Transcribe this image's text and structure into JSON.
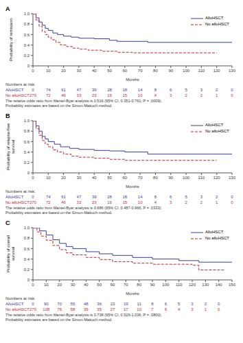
{
  "chart_data": [
    {
      "type": "line",
      "title": "A",
      "y_label": "Probability of remission",
      "x_label": "Months",
      "xlim": [
        0,
        130
      ],
      "xticks": [
        0,
        10,
        20,
        30,
        40,
        50,
        60,
        70,
        80,
        90,
        100,
        110,
        120,
        130
      ],
      "ylim": [
        0,
        1
      ],
      "yticks": [
        0,
        0.2,
        0.4,
        0.6,
        0.8,
        {
          "value": 1,
          "label": "1.0"
        }
      ],
      "legend": "upper right",
      "series": [
        {
          "name": "AlloHSCT",
          "color": "#3a3aa8",
          "line_style": "solid",
          "x": [
            0,
            2,
            4,
            6,
            8,
            10,
            13,
            16,
            20,
            25,
            30,
            40,
            50,
            55,
            75,
            130
          ],
          "values": [
            1,
            0.92,
            0.84,
            0.78,
            0.72,
            0.68,
            0.63,
            0.6,
            0.57,
            0.55,
            0.53,
            0.52,
            0.49,
            0.47,
            0.45,
            0.45
          ]
        },
        {
          "name": "No alloHSCT",
          "color": "#c0282d",
          "line_style": "dashed",
          "x": [
            0,
            2,
            4,
            6,
            8,
            10,
            12,
            15,
            18,
            22,
            26,
            30,
            36,
            45,
            55,
            65,
            120
          ],
          "values": [
            1,
            0.88,
            0.76,
            0.66,
            0.6,
            0.55,
            0.5,
            0.45,
            0.4,
            0.37,
            0.34,
            0.32,
            0.3,
            0.28,
            0.26,
            0.25,
            0.25
          ]
        }
      ],
      "at_risk": {
        "label": "Numbers at risk:",
        "times": [
          0,
          10,
          20,
          30,
          40,
          50,
          60,
          70,
          80,
          90,
          100,
          110,
          120,
          130
        ],
        "rows": [
          [
            0,
            74,
            61,
            47,
            39,
            28,
            18,
            14,
            8,
            6,
            5,
            3,
            2,
            0
          ],
          [
            270,
            72,
            46,
            33,
            23,
            19,
            15,
            10,
            4,
            3,
            2,
            2,
            1,
            0
          ]
        ]
      },
      "caption": [
        "The relative odds ratio from Mantel-Byar analysis is 0.516 (95% CI, 0.351-0.761; P = .0009).",
        "Probability estimates are based on the Simon-Makuch method."
      ]
    },
    {
      "type": "line",
      "title": "B",
      "y_label": "Probability of relapse-free survival",
      "x_label": "Months",
      "xlim": [
        0,
        130
      ],
      "xticks": [
        0,
        10,
        20,
        30,
        40,
        50,
        60,
        70,
        80,
        90,
        100,
        110,
        120,
        130
      ],
      "ylim": [
        0,
        1
      ],
      "yticks": [
        0,
        0.2,
        0.4,
        0.6,
        0.8,
        {
          "value": 1,
          "label": "1.0"
        }
      ],
      "legend": "upper right",
      "series": [
        {
          "name": "AlloHSCT",
          "color": "#3a3aa8",
          "line_style": "solid",
          "x": [
            0,
            2,
            4,
            6,
            8,
            10,
            14,
            18,
            24,
            30,
            40,
            50,
            60,
            75,
            130
          ],
          "values": [
            1,
            0.9,
            0.8,
            0.7,
            0.65,
            0.6,
            0.55,
            0.5,
            0.47,
            0.45,
            0.43,
            0.42,
            0.4,
            0.36,
            0.36
          ]
        },
        {
          "name": "No alloHSCT",
          "color": "#c0282d",
          "line_style": "dashed",
          "x": [
            0,
            2,
            4,
            6,
            8,
            10,
            13,
            16,
            20,
            25,
            30,
            40,
            50,
            60,
            120
          ],
          "values": [
            1,
            0.85,
            0.72,
            0.62,
            0.55,
            0.5,
            0.44,
            0.4,
            0.36,
            0.32,
            0.3,
            0.28,
            0.26,
            0.24,
            0.24
          ]
        }
      ],
      "at_risk": {
        "label": "Numbers at risk:",
        "times": [
          0,
          10,
          20,
          30,
          40,
          50,
          60,
          70,
          80,
          90,
          100,
          110,
          120,
          130
        ],
        "rows": [
          [
            0,
            74,
            61,
            47,
            39,
            28,
            18,
            14,
            8,
            6,
            5,
            3,
            2,
            0
          ],
          [
            270,
            72,
            46,
            33,
            23,
            19,
            15,
            10,
            4,
            3,
            2,
            2,
            1,
            0
          ]
        ]
      },
      "caption": [
        "The relative odds ratio from Mantel-Byar analysis is 0.686 (95% CI, 0.487-0.966; P = .0333).",
        "Probability estimates are based on the Simon-Makuch method."
      ]
    },
    {
      "type": "line",
      "title": "C",
      "y_label": "Probability of overall survival",
      "x_label": "Months",
      "xlim": [
        0,
        150
      ],
      "xticks": [
        0,
        10,
        20,
        30,
        40,
        50,
        60,
        70,
        80,
        90,
        100,
        110,
        120,
        130,
        140,
        150
      ],
      "ylim": [
        0,
        1
      ],
      "yticks": [
        0,
        0.2,
        0.4,
        0.6,
        0.8,
        {
          "value": 1,
          "label": "1.0"
        }
      ],
      "legend": "upper right",
      "series": [
        {
          "name": "AlloHSCT",
          "color": "#3a3aa8",
          "line_style": "solid",
          "x": [
            0,
            5,
            10,
            15,
            20,
            25,
            30,
            40,
            50,
            60,
            75,
            90,
            110,
            125,
            150
          ],
          "values": [
            1,
            0.94,
            0.86,
            0.77,
            0.7,
            0.64,
            0.6,
            0.54,
            0.5,
            0.47,
            0.43,
            0.4,
            0.37,
            0.34,
            0.34
          ]
        },
        {
          "name": "No alloHSCT",
          "color": "#c0282d",
          "line_style": "dashed",
          "x": [
            0,
            3,
            6,
            10,
            15,
            20,
            25,
            30,
            40,
            50,
            60,
            75,
            90,
            120,
            125,
            145
          ],
          "values": [
            1,
            0.92,
            0.84,
            0.76,
            0.66,
            0.58,
            0.52,
            0.48,
            0.43,
            0.39,
            0.35,
            0.32,
            0.3,
            0.28,
            0.19,
            0.19
          ]
        }
      ],
      "at_risk": {
        "label": "Numbers at risk:",
        "times": [
          0,
          10,
          20,
          30,
          40,
          50,
          60,
          70,
          80,
          90,
          100,
          110,
          120,
          130,
          140
        ],
        "rows": [
          [
            0,
            90,
            70,
            55,
            48,
            36,
            23,
            19,
            11,
            8,
            6,
            5,
            3,
            2,
            0
          ],
          [
            270,
            108,
            76,
            58,
            39,
            35,
            27,
            17,
            10,
            7,
            6,
            4,
            3,
            1,
            0
          ]
        ]
      },
      "caption": [
        "The relative odds ratio from Mantel-Byar analysis is 0.738 (95% CI, 0.526-1.036; P = .0800).",
        "Probability estimates are based on the Simon-Makuch method."
      ]
    }
  ]
}
